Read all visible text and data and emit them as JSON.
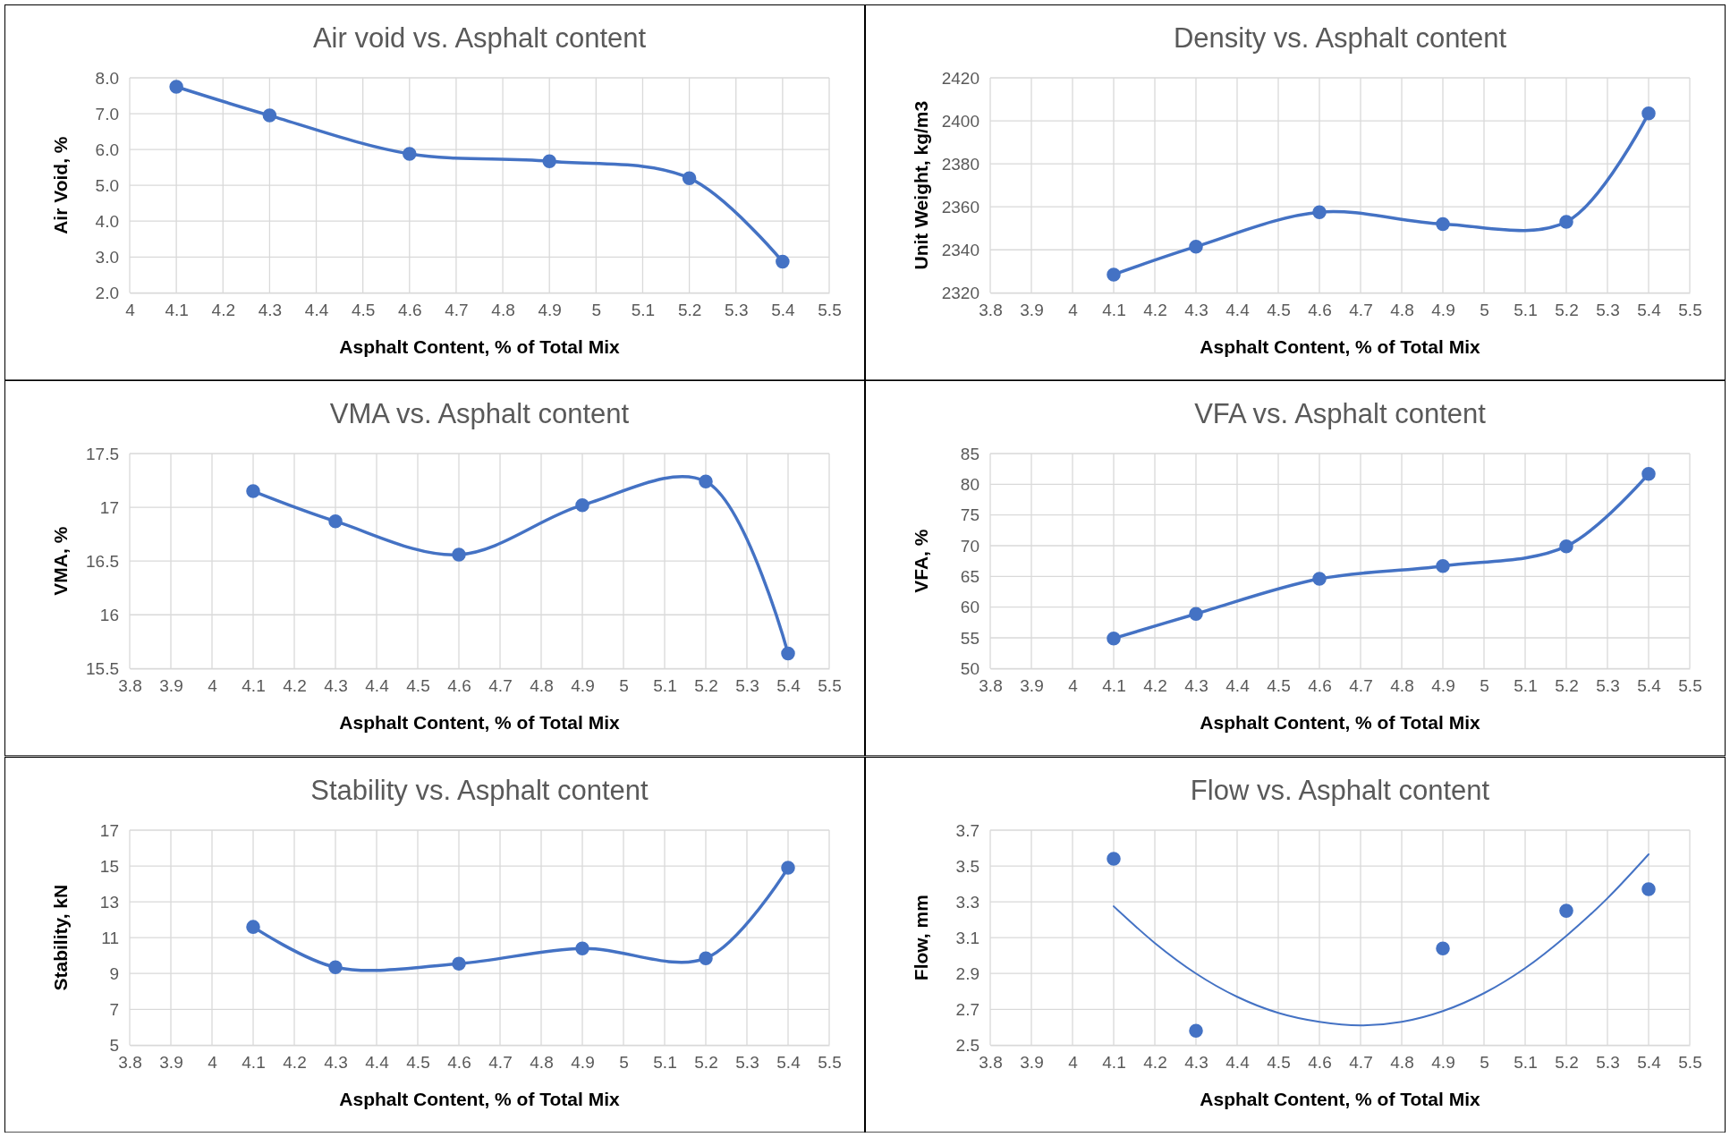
{
  "chart_data": [
    {
      "type": "line",
      "title": "Air void vs. Asphalt content",
      "xlabel": "Asphalt Content, % of Total Mix",
      "ylabel": "Air Void, %",
      "x": [
        4.1,
        4.3,
        4.6,
        4.9,
        5.2,
        5.4
      ],
      "xlim": [
        4,
        5.5
      ],
      "xticks": [
        4,
        4.1,
        4.2,
        4.3,
        4.4,
        4.5,
        4.6,
        4.7,
        4.8,
        4.9,
        5,
        5.1,
        5.2,
        5.3,
        5.4,
        5.5
      ],
      "ylim": [
        2,
        8
      ],
      "yticks": [
        {
          "value": 2,
          "label": "2.0"
        },
        {
          "value": 3,
          "label": "3.0"
        },
        {
          "value": 4,
          "label": "4.0"
        },
        {
          "value": 5,
          "label": "5.0"
        },
        {
          "value": 6,
          "label": "6.0"
        },
        {
          "value": 7,
          "label": "7.0"
        },
        {
          "value": 8,
          "label": "8.0"
        }
      ],
      "grid": true,
      "marker": "circle",
      "series": [
        {
          "color": "#4472c4",
          "values": [
            7.75,
            6.95,
            5.88,
            5.67,
            5.2,
            2.87
          ]
        }
      ]
    },
    {
      "type": "line",
      "title": "Density vs. Asphalt content",
      "xlabel": "Asphalt Content, % of Total Mix",
      "ylabel": "Unit Weight, kg/m3",
      "x": [
        4.1,
        4.3,
        4.6,
        4.9,
        5.2,
        5.4
      ],
      "xlim": [
        3.8,
        5.5
      ],
      "xticks": [
        3.8,
        3.9,
        4,
        4.1,
        4.2,
        4.3,
        4.4,
        4.5,
        4.6,
        4.7,
        4.8,
        4.9,
        5,
        5.1,
        5.2,
        5.3,
        5.4,
        5.5
      ],
      "ylim": [
        2320,
        2420
      ],
      "yticks": [
        2320,
        2340,
        2360,
        2380,
        2400,
        2420
      ],
      "grid": true,
      "marker": "circle",
      "series": [
        {
          "color": "#4472c4",
          "values": [
            2328.5,
            2341.5,
            2357.5,
            2352,
            2353,
            2403.5
          ]
        }
      ]
    },
    {
      "type": "line",
      "title": "VMA vs. Asphalt content",
      "xlabel": "Asphalt Content, % of Total Mix",
      "ylabel": "VMA, %",
      "x": [
        4.1,
        4.3,
        4.6,
        4.9,
        5.2,
        5.4
      ],
      "xlim": [
        3.8,
        5.5
      ],
      "xticks": [
        3.8,
        3.9,
        4,
        4.1,
        4.2,
        4.3,
        4.4,
        4.5,
        4.6,
        4.7,
        4.8,
        4.9,
        5,
        5.1,
        5.2,
        5.3,
        5.4,
        5.5
      ],
      "ylim": [
        15.5,
        17.5
      ],
      "yticks": [
        15.5,
        16,
        16.5,
        17,
        17.5
      ],
      "grid": true,
      "marker": "circle",
      "series": [
        {
          "color": "#4472c4",
          "values": [
            17.15,
            16.87,
            16.56,
            17.02,
            17.24,
            15.64
          ]
        }
      ]
    },
    {
      "type": "line",
      "title": "VFA vs. Asphalt content",
      "xlabel": "Asphalt Content, % of Total Mix",
      "ylabel": "VFA, %",
      "x": [
        4.1,
        4.3,
        4.6,
        4.9,
        5.2,
        5.4
      ],
      "xlim": [
        3.8,
        5.5
      ],
      "xticks": [
        3.8,
        3.9,
        4,
        4.1,
        4.2,
        4.3,
        4.4,
        4.5,
        4.6,
        4.7,
        4.8,
        4.9,
        5,
        5.1,
        5.2,
        5.3,
        5.4,
        5.5
      ],
      "ylim": [
        50,
        85
      ],
      "yticks": [
        50,
        55,
        60,
        65,
        70,
        75,
        80,
        85
      ],
      "grid": true,
      "marker": "circle",
      "series": [
        {
          "color": "#4472c4",
          "values": [
            54.9,
            58.9,
            64.6,
            66.7,
            69.9,
            81.7
          ]
        }
      ]
    },
    {
      "type": "line",
      "title": "Stability vs. Asphalt content",
      "xlabel": "Asphalt Content, % of Total Mix",
      "ylabel": "Stability, kN",
      "x": [
        4.1,
        4.3,
        4.6,
        4.9,
        5.2,
        5.4
      ],
      "xlim": [
        3.8,
        5.5
      ],
      "xticks": [
        3.8,
        3.9,
        4,
        4.1,
        4.2,
        4.3,
        4.4,
        4.5,
        4.6,
        4.7,
        4.8,
        4.9,
        5,
        5.1,
        5.2,
        5.3,
        5.4,
        5.5
      ],
      "ylim": [
        5,
        17
      ],
      "yticks": [
        5,
        7,
        9,
        11,
        13,
        15,
        17
      ],
      "grid": true,
      "marker": "circle",
      "series": [
        {
          "color": "#4472c4",
          "values": [
            11.6,
            9.35,
            9.55,
            10.4,
            9.85,
            14.9
          ]
        }
      ]
    },
    {
      "type": "scatter",
      "title": "Flow vs. Asphalt content",
      "xlabel": "Asphalt Content, % of Total Mix",
      "ylabel": "Flow, mm",
      "xlim": [
        3.8,
        5.5
      ],
      "xticks": [
        3.8,
        3.9,
        4,
        4.1,
        4.2,
        4.3,
        4.4,
        4.5,
        4.6,
        4.7,
        4.8,
        4.9,
        5,
        5.1,
        5.2,
        5.3,
        5.4,
        5.5
      ],
      "ylim": [
        2.5,
        3.7
      ],
      "yticks": [
        2.5,
        2.7,
        2.9,
        3.1,
        3.3,
        3.5,
        3.7
      ],
      "grid": true,
      "marker": "circle",
      "series": [
        {
          "color": "#4472c4",
          "x": [
            4.1,
            4.3,
            4.9,
            5.2,
            5.4
          ],
          "values": [
            3.54,
            2.58,
            3.04,
            3.25,
            3.37
          ]
        },
        {
          "type": "line",
          "marker": "none",
          "color": "#4472c4",
          "x": [
            4.1,
            4.2,
            4.3,
            4.4,
            4.5,
            4.6,
            4.7,
            4.8,
            4.9,
            5.0,
            5.1,
            5.2,
            5.3,
            5.4
          ],
          "values": [
            3.275,
            3.07,
            2.9,
            2.77,
            2.68,
            2.63,
            2.61,
            2.63,
            2.69,
            2.79,
            2.93,
            3.11,
            3.32,
            3.565
          ]
        }
      ]
    }
  ]
}
